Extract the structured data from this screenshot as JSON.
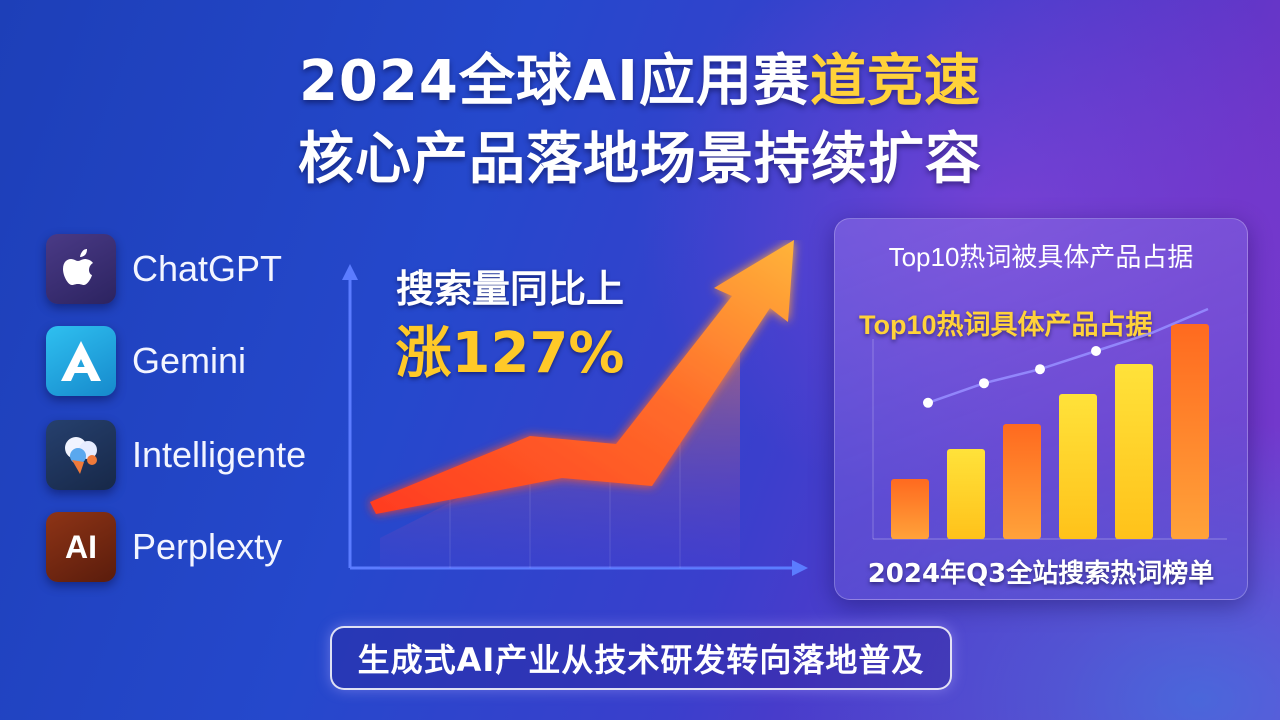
{
  "headline": {
    "line1_prefix": "2024全球AI应用赛",
    "line1_highlight": "道竞速",
    "line2": "核心产品落地场景持续扩容"
  },
  "apps": [
    {
      "name": "ChatGPT",
      "icon": "apple-icon",
      "color": "#3a2d6e"
    },
    {
      "name": "Gemini",
      "icon": "letter-a-icon",
      "color": "#1aa6e0"
    },
    {
      "name": "Intelligente",
      "icon": "cloud-bubble-icon",
      "color": "#1f3566"
    },
    {
      "name": "Perplexty",
      "icon_text": "AI",
      "icon": "ai-text-icon",
      "color": "#7a2a10"
    }
  ],
  "growth": {
    "line1": "搜索量同比上",
    "line2": "涨127%"
  },
  "panel": {
    "title": "Top10热词被具体产品占据",
    "subtitle": "Top10热词具体产品占据",
    "footer": "2024年Q3全站搜索热词榜单"
  },
  "chart_data": {
    "type": "bar",
    "values": [
      0.24,
      0.36,
      0.46,
      0.58,
      0.7,
      0.86
    ],
    "line_values": [
      0.33,
      0.47,
      0.57,
      0.7,
      0.83,
      1.0
    ]
  },
  "banner": "生成式AI产业从技术研发转向落地普及",
  "colors": {
    "accent_yellow": "#ffd23a",
    "arrow_start": "#ff3b1f",
    "arrow_end": "#ffb43a"
  }
}
